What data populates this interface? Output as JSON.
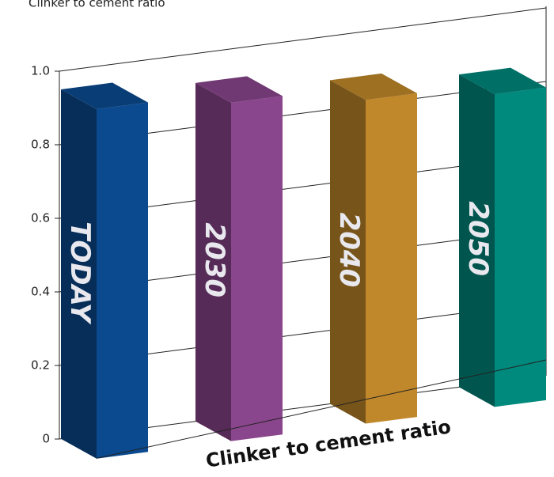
{
  "chart_data": {
    "type": "bar3d",
    "title": "Clinker to cement ratio",
    "x_label": "Clinker to cement ratio",
    "categories": [
      "TODAY",
      "2030",
      "2040",
      "2050"
    ],
    "values": [
      0.95,
      0.92,
      0.88,
      0.85
    ],
    "colors": [
      "#0b4a8f",
      "#8a468c",
      "#c0882a",
      "#00897d"
    ],
    "ylim": [
      0,
      1
    ],
    "yticks": [
      0,
      0.2,
      0.4,
      0.6,
      0.8,
      {
        "value": 1,
        "label": "1.0"
      }
    ],
    "grid": true
  }
}
